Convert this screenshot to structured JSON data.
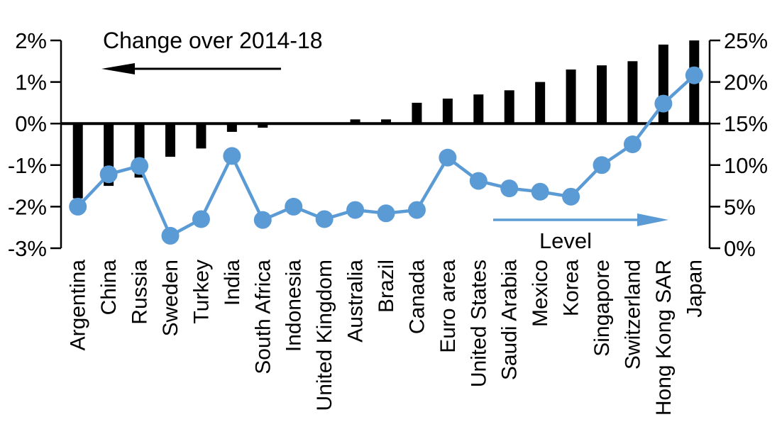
{
  "chart_data": {
    "type": "bar+line",
    "title": "",
    "categories": [
      "Argentina",
      "China",
      "Russia",
      "Sweden",
      "Turkey",
      "India",
      "South Africa",
      "Indonesia",
      "United Kingdom",
      "Australia",
      "Brazil",
      "Canada",
      "Euro area",
      "United States",
      "Saudi Arabia",
      "Mexico",
      "Korea",
      "Singapore",
      "Switzerland",
      "Hong Kong SAR",
      "Japan"
    ],
    "series": [
      {
        "name": "Change over 2014-18",
        "type": "bar",
        "axis": "left",
        "color": "#000000",
        "values": [
          -1.8,
          -1.5,
          -1.3,
          -0.8,
          -0.6,
          -0.2,
          -0.1,
          0,
          0,
          0.1,
          0.1,
          0.5,
          0.6,
          0.7,
          0.8,
          1.0,
          1.3,
          1.4,
          1.5,
          1.9,
          2.0
        ]
      },
      {
        "name": "Level",
        "type": "line",
        "axis": "right",
        "color": "#5b9bd5",
        "values": [
          5.0,
          8.9,
          9.9,
          1.5,
          3.5,
          11.1,
          3.4,
          5.0,
          3.5,
          4.6,
          4.2,
          4.6,
          10.9,
          8.1,
          7.2,
          6.8,
          6.2,
          10.0,
          12.5,
          17.4,
          20.8
        ]
      }
    ],
    "left_axis": {
      "min": -3,
      "max": 2,
      "tick_values": [
        2,
        1,
        0,
        -1,
        -2,
        -3
      ],
      "tick_labels": [
        "2%",
        "1%",
        "0%",
        "-1%",
        "-2%",
        "-3%"
      ]
    },
    "right_axis": {
      "min": 0,
      "max": 25,
      "tick_values": [
        25,
        20,
        15,
        10,
        5,
        0
      ],
      "tick_labels": [
        "25%",
        "20%",
        "15%",
        "10%",
        "5%",
        "0%"
      ]
    },
    "grid": "none",
    "legend_position": "in-plot annotations with direction arrows",
    "zero_baseline": true
  },
  "annotations": {
    "change_label": "Change over 2014-18",
    "level_label": "Level"
  },
  "colors": {
    "bar": "#000000",
    "line": "#5b9bd5",
    "axis": "#000000",
    "text": "#000000",
    "background": "#ffffff"
  }
}
